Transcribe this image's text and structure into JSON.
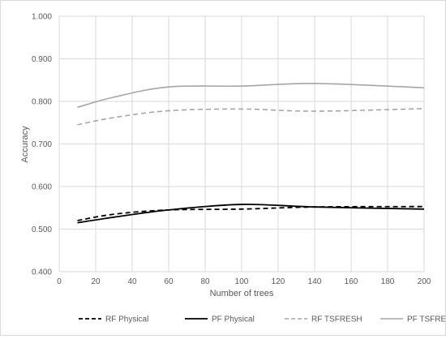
{
  "chart_data": {
    "type": "line",
    "title": "",
    "xlabel": "Number of trees",
    "ylabel": "Accuracy",
    "xlim": [
      0,
      200
    ],
    "ylim": [
      0.4,
      1.0
    ],
    "x_ticks": [
      0,
      20,
      40,
      60,
      80,
      100,
      120,
      140,
      160,
      180,
      200
    ],
    "y_ticks": [
      0.4,
      0.5,
      0.6,
      0.7,
      0.8,
      0.9,
      1.0
    ],
    "x_tick_labels": [
      "0",
      "20",
      "40",
      "60",
      "80",
      "100",
      "120",
      "140",
      "160",
      "180",
      "200"
    ],
    "y_tick_labels": [
      "0.400",
      "0.500",
      "0.600",
      "0.700",
      "0.800",
      "0.900",
      "1.000"
    ],
    "grid": true,
    "legend_position": "bottom",
    "series": [
      {
        "name": "RF Physical",
        "color": "#000000",
        "dash": "dashed",
        "x": [
          10,
          30,
          60,
          100,
          140,
          200
        ],
        "y": [
          0.52,
          0.535,
          0.545,
          0.547,
          0.552,
          0.553
        ]
      },
      {
        "name": "PF Physical",
        "color": "#000000",
        "dash": "solid",
        "x": [
          10,
          30,
          60,
          100,
          140,
          200
        ],
        "y": [
          0.515,
          0.528,
          0.545,
          0.558,
          0.552,
          0.547
        ]
      },
      {
        "name": "RF TSFRESH",
        "color": "#a6a6a6",
        "dash": "dashed",
        "x": [
          10,
          30,
          60,
          100,
          140,
          200
        ],
        "y": [
          0.745,
          0.762,
          0.778,
          0.782,
          0.777,
          0.783
        ]
      },
      {
        "name": "PF TSFRESH",
        "color": "#a6a6a6",
        "dash": "solid",
        "x": [
          10,
          30,
          60,
          100,
          140,
          200
        ],
        "y": [
          0.786,
          0.81,
          0.834,
          0.836,
          0.842,
          0.832
        ]
      }
    ]
  }
}
